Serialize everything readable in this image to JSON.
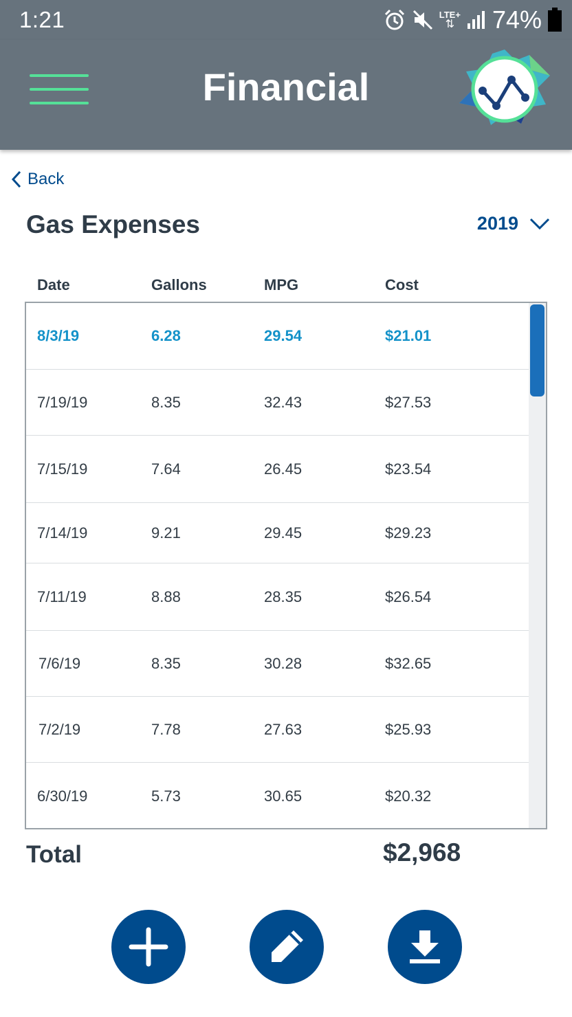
{
  "status_bar": {
    "time": "1:21",
    "network": "LTE+",
    "battery": "74%",
    "icons": [
      "alarm-icon",
      "mute-icon",
      "lte-data-icon",
      "signal-icon",
      "battery-icon"
    ]
  },
  "app_bar": {
    "title": "Financial",
    "menu_icon": "hamburger-menu-icon",
    "logo_icon": "line-chart-logo-icon",
    "menu_color": "#55e098",
    "background": "#67737d"
  },
  "back": {
    "label": "Back"
  },
  "page": {
    "title": "Gas Expenses"
  },
  "year_filter": {
    "selected": "2019"
  },
  "table": {
    "columns": [
      "Date",
      "Gallons",
      "MPG",
      "Cost"
    ],
    "rows": [
      {
        "date": "8/3/19",
        "gallons": "6.28",
        "mpg": "29.54",
        "cost": "$21.01",
        "selected": true
      },
      {
        "date": "7/19/19",
        "gallons": "8.35",
        "mpg": "32.43",
        "cost": "$27.53"
      },
      {
        "date": "7/15/19",
        "gallons": "7.64",
        "mpg": "26.45",
        "cost": "$23.54"
      },
      {
        "date": "7/14/19",
        "gallons": "9.21",
        "mpg": "29.45",
        "cost": "$29.23"
      },
      {
        "date": "7/11/19",
        "gallons": "8.88",
        "mpg": "28.35",
        "cost": "$26.54"
      },
      {
        "date": "7/6/19",
        "gallons": "8.35",
        "mpg": "30.28",
        "cost": "$32.65"
      },
      {
        "date": "7/2/19",
        "gallons": "7.78",
        "mpg": "27.63",
        "cost": "$25.93"
      },
      {
        "date": "6/30/19",
        "gallons": "5.73",
        "mpg": "30.65",
        "cost": "$20.32"
      }
    ]
  },
  "total": {
    "label": "Total",
    "value": "$2,968"
  },
  "actions": [
    {
      "icon": "add-icon"
    },
    {
      "icon": "edit-pencil-icon"
    },
    {
      "icon": "download-icon"
    }
  ],
  "colors": {
    "accent": "#004b8d",
    "selected_row_text": "#1492c9",
    "scrollbar": "#1b6fba"
  }
}
